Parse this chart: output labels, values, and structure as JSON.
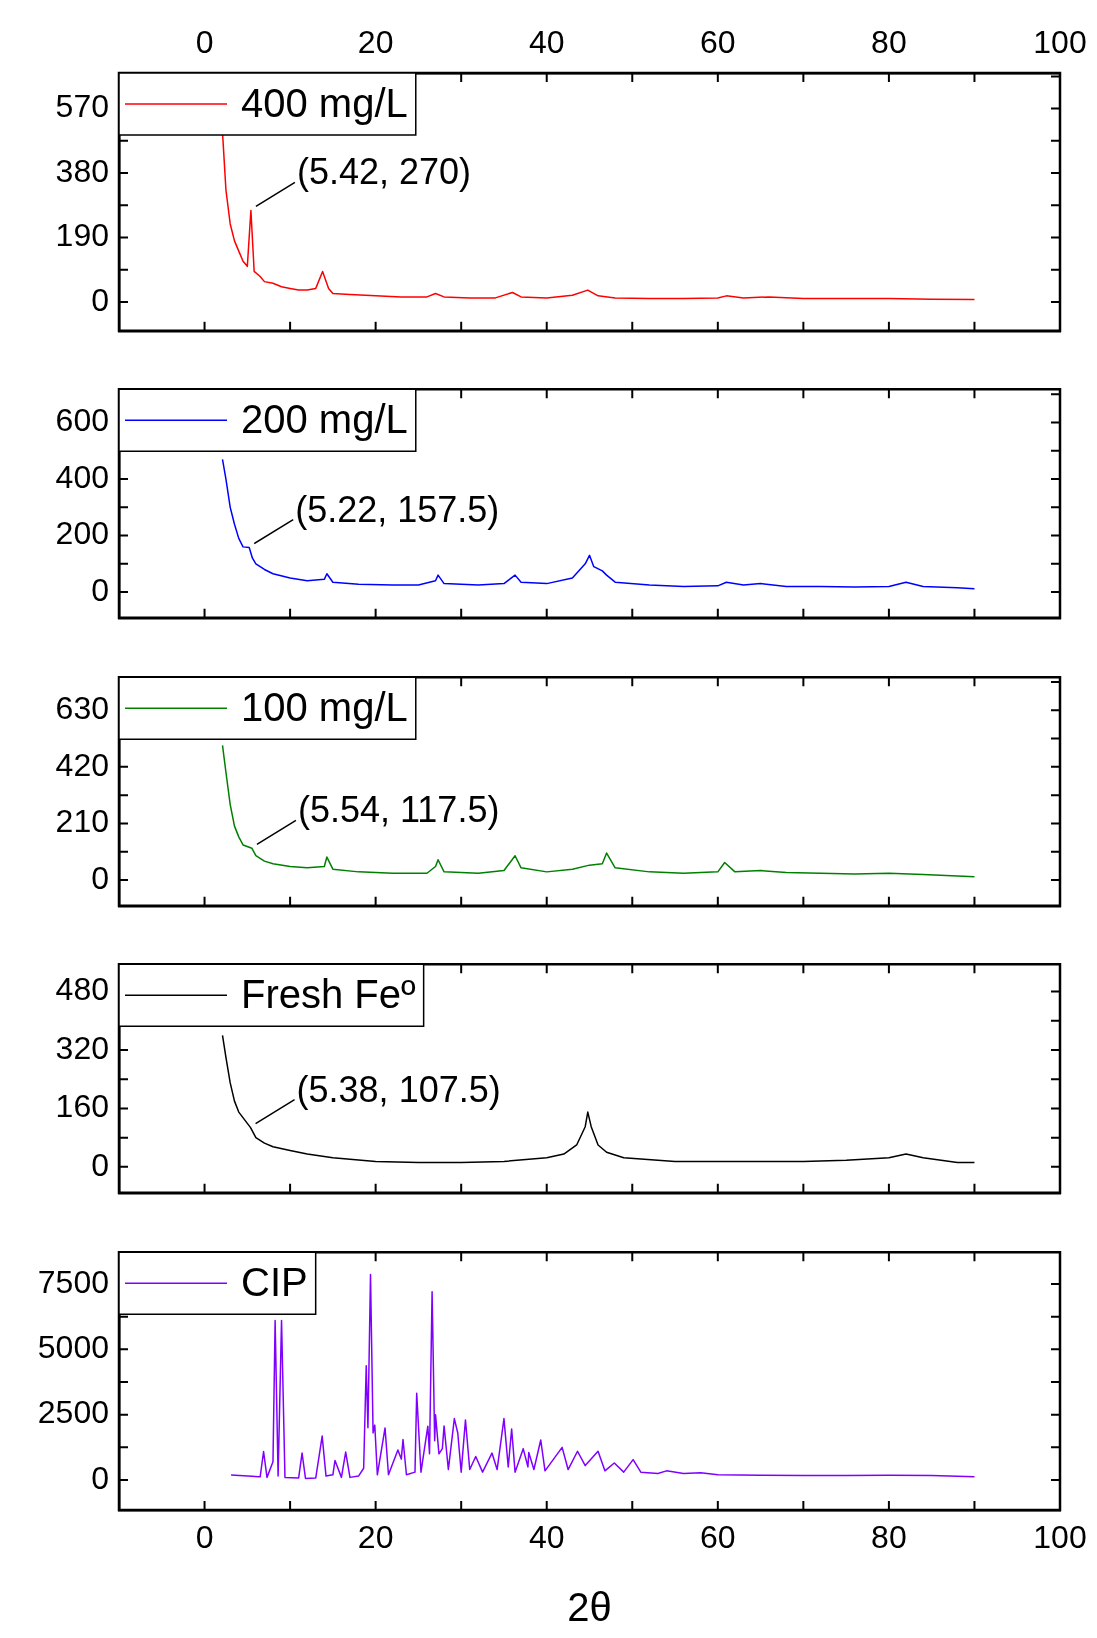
{
  "chart_data": [
    {
      "type": "line",
      "legend": "top left",
      "marker": "none",
      "tick_labels": "y",
      "xlim": [
        -10,
        100
      ],
      "xticks": [
        0,
        {
          "value": 10,
          "label": null
        },
        20,
        {
          "value": 30,
          "label": null
        },
        40,
        {
          "value": 50,
          "label": null
        },
        60,
        {
          "value": 70,
          "label": null
        },
        80,
        {
          "value": 90,
          "label": null
        },
        100
      ],
      "x2lim": [
        -10,
        100
      ],
      "x2ticks": [
        0,
        {
          "value": 10,
          "label": null
        },
        20,
        {
          "value": 30,
          "label": null
        },
        40,
        {
          "value": 50,
          "label": null
        },
        60,
        {
          "value": 70,
          "label": null
        },
        80,
        {
          "value": 90,
          "label": null
        },
        100
      ],
      "ylim": [
        -85,
        675
      ],
      "yticks": [
        0,
        {
          "value": 95,
          "label": null
        },
        190,
        {
          "value": 285,
          "label": null
        },
        380,
        {
          "value": 475,
          "label": null
        },
        570,
        {
          "value": 665,
          "label": null
        }
      ],
      "annotations": [
        {
          "text": "(5.42, 270)",
          "x": 5.42,
          "y": 270
        }
      ],
      "x": [
        2.1,
        2.5,
        3,
        3.5,
        4,
        4.5,
        5,
        5.42,
        5.8,
        6.5,
        7,
        8,
        9,
        10,
        11,
        12,
        13,
        13.8,
        14.5,
        15,
        17,
        20,
        23,
        26,
        27,
        28,
        31,
        34,
        36,
        37,
        40,
        43,
        44.8,
        46,
        48,
        52,
        56,
        60,
        61,
        63,
        66,
        70,
        75,
        80,
        85,
        90
      ],
      "series": [
        {
          "name": "400 mg/L",
          "color": "#ff0000",
          "values": [
            500,
            330,
            230,
            180,
            150,
            120,
            105,
            270,
            90,
            75,
            60,
            55,
            45,
            40,
            35,
            35,
            40,
            90,
            40,
            25,
            22,
            18,
            15,
            15,
            25,
            15,
            12,
            12,
            28,
            15,
            12,
            20,
            35,
            18,
            12,
            10,
            10,
            12,
            18,
            12,
            15,
            10,
            10,
            10,
            8,
            7
          ]
        }
      ]
    },
    {
      "type": "line",
      "legend": "top left",
      "marker": "none",
      "tick_labels": "y",
      "xlim": [
        -10,
        100
      ],
      "xticks": [
        0,
        {
          "value": 10,
          "label": null
        },
        20,
        {
          "value": 30,
          "label": null
        },
        40,
        {
          "value": 50,
          "label": null
        },
        60,
        {
          "value": 70,
          "label": null
        },
        80,
        {
          "value": 90,
          "label": null
        },
        100
      ],
      "ylim": [
        -91,
        718
      ],
      "yticks": [
        0,
        {
          "value": 100,
          "label": null
        },
        200,
        {
          "value": 300,
          "label": null
        },
        400,
        {
          "value": 500,
          "label": null
        },
        600,
        {
          "value": 700,
          "label": null
        }
      ],
      "annotations": [
        {
          "text": "(5.22, 157.5)",
          "x": 5.22,
          "y": 157.5
        }
      ],
      "x": [
        2.1,
        2.5,
        3,
        3.5,
        4,
        4.5,
        5.22,
        5.6,
        6,
        7,
        8,
        10,
        12,
        14,
        14.3,
        15,
        18,
        22,
        25,
        27,
        27.3,
        28,
        32,
        35,
        36.3,
        37,
        40,
        43,
        44.5,
        45,
        45.5,
        46.5,
        47,
        48,
        52,
        56,
        60,
        61,
        63,
        65,
        68,
        72,
        76,
        80,
        82,
        84,
        88,
        90
      ],
      "series": [
        {
          "name": "200 mg/L",
          "color": "#0000ff",
          "values": [
            470,
            400,
            300,
            240,
            190,
            160,
            157.5,
            120,
            100,
            80,
            65,
            50,
            40,
            45,
            65,
            35,
            28,
            25,
            25,
            40,
            60,
            30,
            25,
            30,
            60,
            35,
            30,
            50,
            100,
            130,
            90,
            75,
            60,
            35,
            25,
            20,
            22,
            35,
            25,
            30,
            20,
            20,
            18,
            20,
            35,
            20,
            15,
            12
          ]
        }
      ]
    },
    {
      "type": "line",
      "legend": "top left",
      "marker": "none",
      "tick_labels": "y",
      "xlim": [
        -10,
        100
      ],
      "xticks": [
        0,
        {
          "value": 10,
          "label": null
        },
        20,
        {
          "value": 30,
          "label": null
        },
        40,
        {
          "value": 50,
          "label": null
        },
        60,
        {
          "value": 70,
          "label": null
        },
        80,
        {
          "value": 90,
          "label": null
        },
        100
      ],
      "ylim": [
        -96,
        753
      ],
      "yticks": [
        0,
        {
          "value": 105,
          "label": null
        },
        210,
        {
          "value": 315,
          "label": null
        },
        420,
        {
          "value": 525,
          "label": null
        },
        630,
        {
          "value": 735,
          "label": null
        }
      ],
      "annotations": [
        {
          "text": "(5.54, 117.5)",
          "x": 5.54,
          "y": 117.5
        }
      ],
      "x": [
        2.1,
        2.5,
        3,
        3.5,
        4,
        4.5,
        5.54,
        6,
        7,
        8,
        10,
        12,
        14,
        14.3,
        15,
        18,
        22,
        26,
        27,
        27.3,
        28,
        32,
        35,
        36.3,
        37,
        40,
        43,
        45,
        46.5,
        47,
        48,
        52,
        56,
        60,
        60.8,
        62,
        65,
        68,
        72,
        76,
        80,
        84,
        88,
        90
      ],
      "series": [
        {
          "name": "100 mg/L",
          "color": "#008000",
          "values": [
            500,
            400,
            280,
            200,
            160,
            130,
            117.5,
            90,
            70,
            60,
            50,
            45,
            50,
            85,
            40,
            30,
            25,
            25,
            50,
            75,
            30,
            25,
            35,
            90,
            45,
            30,
            40,
            55,
            60,
            100,
            45,
            30,
            25,
            30,
            65,
            30,
            35,
            28,
            25,
            22,
            25,
            20,
            15,
            12
          ]
        }
      ]
    },
    {
      "type": "line",
      "legend": "top left",
      "marker": "none",
      "tick_labels": "y",
      "xlim": [
        -10,
        100
      ],
      "xticks": [
        0,
        {
          "value": 10,
          "label": null
        },
        20,
        {
          "value": 30,
          "label": null
        },
        40,
        {
          "value": 50,
          "label": null
        },
        60,
        {
          "value": 70,
          "label": null
        },
        80,
        {
          "value": 90,
          "label": null
        },
        100
      ],
      "ylim": [
        -71,
        555
      ],
      "yticks": [
        0,
        {
          "value": 80,
          "label": null
        },
        160,
        {
          "value": 240,
          "label": null
        },
        320,
        {
          "value": 400,
          "label": null
        },
        480
      ],
      "annotations": [
        {
          "text": "(5.38, 107.5)",
          "x": 5.38,
          "y": 107.5
        }
      ],
      "x": [
        2.1,
        2.5,
        3,
        3.5,
        4,
        5.38,
        6,
        7,
        8,
        10,
        12,
        15,
        20,
        25,
        30,
        35,
        40,
        42,
        43.5,
        44.5,
        44.8,
        45.2,
        46,
        47,
        49,
        55,
        60,
        65,
        70,
        75,
        80,
        82,
        84,
        88,
        90
      ],
      "series": [
        {
          "name": "Fresh Feº",
          "color": "#000000",
          "values": [
            360,
            300,
            230,
            180,
            150,
            107.5,
            80,
            65,
            55,
            45,
            35,
            25,
            15,
            12,
            12,
            15,
            25,
            35,
            60,
            110,
            150,
            110,
            60,
            40,
            25,
            15,
            15,
            15,
            15,
            18,
            25,
            35,
            25,
            12,
            12
          ]
        }
      ]
    },
    {
      "type": "line",
      "legend": "top left",
      "marker": "none",
      "xlabel": "2θ",
      "xlim": [
        -10,
        100
      ],
      "xticks": [
        0,
        {
          "value": 10,
          "label": null
        },
        20,
        {
          "value": 30,
          "label": null
        },
        40,
        {
          "value": 50,
          "label": null
        },
        60,
        {
          "value": 70,
          "label": null
        },
        80,
        {
          "value": 90,
          "label": null
        },
        100
      ],
      "ylim": [
        -1148,
        8716
      ],
      "yticks": [
        0,
        {
          "value": 1250,
          "label": null
        },
        2500,
        {
          "value": 3750,
          "label": null
        },
        5000,
        {
          "value": 6250,
          "label": null
        },
        7500
      ],
      "x": [
        3.1,
        6.5,
        6.9,
        7.3,
        8,
        8.25,
        8.6,
        9,
        9.4,
        11,
        11.4,
        11.8,
        13,
        13.75,
        14.2,
        15,
        15.25,
        16,
        16.5,
        17,
        18,
        18.6,
        18.9,
        19.1,
        19.4,
        19.7,
        19.9,
        20.2,
        21.1,
        21.5,
        22.6,
        23,
        23.2,
        23.6,
        24.6,
        24.8,
        25.3,
        26.1,
        26.3,
        26.6,
        26.9,
        27,
        27.4,
        27.8,
        28,
        28.5,
        29.2,
        29.6,
        30,
        30.5,
        31,
        31.7,
        32.5,
        33.6,
        34.2,
        35,
        35.5,
        35.9,
        36.3,
        37.25,
        37.8,
        37.9,
        38.5,
        39.3,
        39.8,
        41.8,
        42.5,
        43.6,
        44.5,
        46,
        46.8,
        47.9,
        49,
        50.1,
        51,
        53,
        54,
        56,
        58,
        60,
        65,
        70,
        75,
        80,
        85,
        90
      ],
      "series": [
        {
          "name": "CIP",
          "color": "#8000ff",
          "values": [
            190,
            120,
            1090,
            100,
            700,
            6100,
            150,
            6100,
            100,
            80,
            1030,
            60,
            80,
            1680,
            150,
            200,
            750,
            100,
            1070,
            100,
            150,
            450,
            4370,
            2000,
            7860,
            1800,
            2100,
            200,
            1990,
            200,
            1150,
            800,
            1550,
            200,
            300,
            3320,
            300,
            2060,
            1000,
            7200,
            1500,
            2500,
            1000,
            1200,
            2070,
            400,
            2350,
            1800,
            300,
            2300,
            400,
            900,
            300,
            1030,
            400,
            2350,
            500,
            1950,
            300,
            1200,
            500,
            1050,
            400,
            1530,
            350,
            1250,
            400,
            1100,
            550,
            1100,
            350,
            650,
            300,
            780,
            300,
            250,
            350,
            250,
            280,
            200,
            180,
            170,
            170,
            180,
            170,
            120
          ]
        }
      ]
    }
  ]
}
